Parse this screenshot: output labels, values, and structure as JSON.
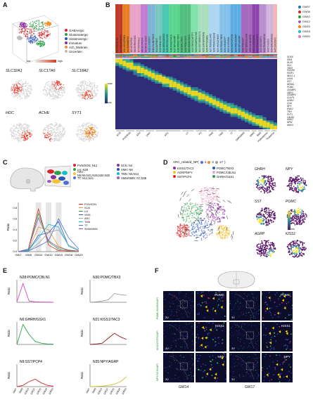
{
  "panels": {
    "A": "A",
    "B": "B",
    "C": "C",
    "D": "D",
    "E": "E",
    "F": "F"
  },
  "panelA": {
    "legend": [
      {
        "label": "GABAergic",
        "color": "#d7262b"
      },
      {
        "label": "Glutamatergic",
        "color": "#2ca048"
      },
      {
        "label": "Histaminergic",
        "color": "#2b55b8"
      },
      {
        "label": "Immature",
        "color": "#8c2f9c"
      },
      {
        "label": "Ach_Mixbrain",
        "color": "#f28c28"
      },
      {
        "label": "Uncertain",
        "color": "#bbbbbb"
      }
    ],
    "scale_low": "low",
    "scale_high": "high",
    "genes": [
      "SLC32A1",
      "SLC17A6",
      "SLC18A2",
      "HDC",
      "ACHE",
      "SYT1"
    ]
  },
  "panelB": {
    "stage_legend": [
      {
        "label": "GW07",
        "color": "#1f77b4"
      },
      {
        "label": "GW08",
        "color": "#d62728"
      },
      {
        "label": "GW10",
        "color": "#2ca02c"
      },
      {
        "label": "GW12",
        "color": "#9467bd"
      },
      {
        "label": "GW15",
        "color": "#ff7f0e"
      },
      {
        "label": "GW18",
        "color": "#17becf"
      },
      {
        "label": "GW20",
        "color": "#e377c2"
      }
    ],
    "genes_right": [
      "SOX6",
      "SIM1",
      "DLX5",
      "ISL1",
      "TBX3",
      "PCDH9",
      "FEZF1",
      "NKX2-1",
      "LHX6",
      "SST",
      "NR5A1",
      "POMC",
      "CRABP1",
      "LMO3",
      "CRABP2",
      "GULP1",
      "GHRH",
      "CGA",
      "NPY",
      "EMX2",
      "TRH",
      "PVT1",
      "CALB2",
      "HMX2",
      "NPW",
      "HMX3"
    ],
    "clusters": [
      {
        "label": "N1:ZIC1/ST18",
        "color": "#c0392b"
      },
      {
        "label": "N2:POU3F3/NTS",
        "color": "#c0392b"
      },
      {
        "label": "N3:LHX1/CPNE4",
        "color": "#e67e22"
      },
      {
        "label": "N4:SIX6/MEIS2",
        "color": "#e67e22"
      },
      {
        "label": "N5:SST/CPN9",
        "color": "#e9a3c9"
      },
      {
        "label": "N6:GHRH/GSX1",
        "color": "#e9a3c9"
      },
      {
        "label": "N7:PCP4/ISL1",
        "color": "#e9a3c9"
      },
      {
        "label": "N8:SST/PCP4",
        "color": "#c27fd0"
      },
      {
        "label": "N9:NKX2-1/SST",
        "color": "#c27fd0"
      },
      {
        "label": "N10:LHX6/OXT",
        "color": "#7fb3d5"
      },
      {
        "label": "N11:CALB1/TAC3",
        "color": "#7fb3d5"
      },
      {
        "label": "N12:AVP/OXT",
        "color": "#76c7c0"
      },
      {
        "label": "N13:SIM1/LHX9",
        "color": "#76c7c0"
      },
      {
        "label": "N14:NR5A1/ESR1",
        "color": "#48c9b0"
      },
      {
        "label": "N15:FEZF1/LHX9",
        "color": "#48c9b0"
      },
      {
        "label": "N16:KISS1/TAC3",
        "color": "#58d68d"
      },
      {
        "label": "N17:NPY/AGRP",
        "color": "#58d68d"
      },
      {
        "label": "N18:POMC/TBX3",
        "color": "#58d68d"
      },
      {
        "label": "N19:GAL/TAC1",
        "color": "#52be80"
      },
      {
        "label": "N20:PENK/SIX3",
        "color": "#52be80"
      },
      {
        "label": "N21:KISS1/TAC3",
        "color": "#52be80"
      },
      {
        "label": "N22:TBX3/CARTPT",
        "color": "#82e0aa"
      },
      {
        "label": "N23:CRABP1/LHX8",
        "color": "#82e0aa"
      },
      {
        "label": "N24:SST/ONECUT1",
        "color": "#a9dfbf"
      },
      {
        "label": "N25:LMX1A/FOXA1",
        "color": "#a9dfbf"
      },
      {
        "label": "N26:PITX2/SIM1",
        "color": "#a9dfbf"
      },
      {
        "label": "N27:FOXB1/LHX5",
        "color": "#aed6f1"
      },
      {
        "label": "N28:POMC/CBLN1",
        "color": "#aed6f1"
      },
      {
        "label": "N29:HMX2/HMX3",
        "color": "#aed6f1"
      },
      {
        "label": "N30:POMC/TBX3",
        "color": "#85c1e9"
      },
      {
        "label": "N31:SIM1/OTP",
        "color": "#85c1e9"
      },
      {
        "label": "N32:LHX9/GAL",
        "color": "#85c1e9"
      },
      {
        "label": "N33:HCRT/PDYN",
        "color": "#5dade2"
      },
      {
        "label": "N34:PMCH/CART",
        "color": "#5dade2"
      },
      {
        "label": "N35:NPY/AGRP",
        "color": "#5dade2"
      },
      {
        "label": "N36:TRH/SST",
        "color": "#a569bd"
      },
      {
        "label": "N37:NR5A2/LHX8",
        "color": "#a569bd"
      },
      {
        "label": "N38:CALB2/NPW",
        "color": "#a569bd"
      },
      {
        "label": "N39:LHX6/SOX6",
        "color": "#8e44ad"
      },
      {
        "label": "N40:PVALB/TAC1",
        "color": "#8e44ad"
      },
      {
        "label": "N41:HDC/WIF1",
        "color": "#bb8fce"
      },
      {
        "label": "N42:PAX6/SOX14",
        "color": "#bb8fce"
      },
      {
        "label": "N43:TH/ZIC2",
        "color": "#d2b4de"
      },
      {
        "label": "N44:GAD2/MEIS2",
        "color": "#d2b4de"
      },
      {
        "label": "N45:SIX3/SP9",
        "color": "#f5b7b1"
      }
    ],
    "regions": [
      {
        "label": "SCN",
        "span": 3
      },
      {
        "label": "PVN/SON",
        "span": 3
      },
      {
        "label": "ARH",
        "span": 3
      },
      {
        "label": "VMH",
        "span": 3
      },
      {
        "label": "ARC",
        "span": 8
      },
      {
        "label": "LH",
        "span": 4
      },
      {
        "label": "PH",
        "span": 4
      },
      {
        "label": "PMN",
        "span": 3
      },
      {
        "label": "TMN",
        "span": 3
      },
      {
        "label": "TT",
        "span": 3
      },
      {
        "label": "SMN/MMN",
        "span": 4
      },
      {
        "label": "MMN",
        "span": 2
      },
      {
        "label": "SMN",
        "span": 2
      },
      {
        "label": "Prethalamus",
        "span": 2
      },
      {
        "label": "Thalamus",
        "span": 2
      }
    ],
    "scale_max": "max",
    "scale_min": "min"
  },
  "panelC": {
    "legend": [
      {
        "label": "PVN/SON: N12",
        "color": "#d7262b"
      },
      {
        "label": "SCN: N4",
        "color": "#8c2f9c"
      },
      {
        "label": "LH: N29",
        "color": "#2ca048"
      },
      {
        "label": "VMH: N8",
        "color": "#2b55b8"
      },
      {
        "label": "ARC: N6,N9,N21,N28,N30,N35",
        "color": "#f2c230"
      },
      {
        "label": "TMN: N5,N13",
        "color": "#17becf"
      },
      {
        "label": "TT: N14,N41",
        "color": "#4a6fd8"
      },
      {
        "label": "SMN/MMN: N7,N38",
        "color": "#9b59b6"
      }
    ],
    "ylabel": "Ratio",
    "ytick_labels": [
      "0.0",
      "0.2",
      "0.4",
      "0.6",
      "0.8"
    ],
    "chart_data": {
      "type": "line",
      "categories": [
        "GW7",
        "GW8",
        "GW10",
        "GW12",
        "GW15",
        "GW18",
        "GW20"
      ],
      "ylabel": "Ratio",
      "ylim": [
        0,
        0.9
      ],
      "highlight_categories": [
        "GW10",
        "GW12",
        "GW15"
      ],
      "series": [
        {
          "name": "PVN/SON",
          "color": "#d7262b",
          "values": [
            0.0,
            0.05,
            0.78,
            0.12,
            0.02,
            0.01,
            0.0
          ]
        },
        {
          "name": "SCN",
          "color": "#e89a2a",
          "values": [
            0.0,
            0.02,
            0.45,
            0.4,
            0.1,
            0.02,
            0.0
          ]
        },
        {
          "name": "LH",
          "color": "#2ca048",
          "values": [
            0.0,
            0.03,
            0.7,
            0.18,
            0.05,
            0.02,
            0.01
          ]
        },
        {
          "name": "VMH",
          "color": "#2b55b8",
          "values": [
            0.0,
            0.02,
            0.3,
            0.35,
            0.55,
            0.1,
            0.02
          ]
        },
        {
          "name": "ARC",
          "color": "#9e9e9e",
          "values": [
            0.0,
            0.01,
            0.15,
            0.35,
            0.4,
            0.12,
            0.03
          ]
        },
        {
          "name": "TMN",
          "color": "#17becf",
          "values": [
            0.0,
            0.02,
            0.25,
            0.5,
            0.45,
            0.1,
            0.02
          ]
        },
        {
          "name": "TT",
          "color": "#4a6fd8",
          "values": [
            0.0,
            0.01,
            0.1,
            0.2,
            0.6,
            0.25,
            0.05
          ]
        },
        {
          "name": "SMN/MMN",
          "color": "#9b59b6",
          "values": [
            0.0,
            0.05,
            0.62,
            0.2,
            0.08,
            0.03,
            0.01
          ]
        }
      ]
    }
  },
  "panelD": {
    "title": "ARC_related_NP(",
    "title_items": [
      {
        "label": "1",
        "color": "#4a6fd8"
      },
      {
        "label": "2",
        "color": "#f28c28"
      },
      {
        "label": "17",
        "color": "#9e9e9e"
      }
    ],
    "title_end": ")",
    "legend": [
      {
        "label": "KISS1/TAC3",
        "color": "#8c2f9c"
      },
      {
        "label": "POMC/TBX3",
        "color": "#2b55b8"
      },
      {
        "label": "AGRP/NPY",
        "color": "#f2c230"
      },
      {
        "label": "POMC/CBLN1",
        "color": "#e9a3c9"
      },
      {
        "label": "SST/PCP4",
        "color": "#d7262b"
      },
      {
        "label": "GHRH/GSX1",
        "color": "#2ca048"
      }
    ],
    "genes": [
      "GHRH",
      "NPY",
      "SST",
      "POMC",
      "AGRP",
      "KISS1"
    ],
    "scale_max": "max",
    "scale_min": "min"
  },
  "panelE": {
    "charts": [
      {
        "title": "N28:POMC/CBLN1",
        "color": "#e040c8",
        "values": [
          0.02,
          0.75,
          0.05,
          0.02,
          0.01,
          0.01,
          0.0
        ]
      },
      {
        "title": "N30:POMC/TBX3",
        "color": "#9e9e9e",
        "values": [
          0.0,
          0.02,
          0.05,
          0.1,
          0.35,
          0.3,
          0.28
        ]
      },
      {
        "title": "N6:GHRH/GSX1",
        "color": "#2ca048",
        "values": [
          0.0,
          0.8,
          0.4,
          0.12,
          0.05,
          0.02,
          0.01
        ]
      },
      {
        "title": "N21:KISS1/TAC3",
        "color": "#8b1a1a",
        "values": [
          0.0,
          0.02,
          0.05,
          0.25,
          0.45,
          0.3,
          0.2
        ]
      },
      {
        "title": "N9:SST/PCP4",
        "color": "#d7262b",
        "values": [
          0.0,
          0.05,
          0.2,
          0.3,
          0.15,
          0.05,
          0.02
        ]
      },
      {
        "title": "N35:NPY/AGRP",
        "color": "#c8c820",
        "values": [
          0.0,
          0.01,
          0.02,
          0.05,
          0.1,
          0.2,
          0.4
        ]
      }
    ],
    "categories": [
      "GW7",
      "GW8",
      "GW10",
      "GW12",
      "GW15",
      "GW18",
      "GW20"
    ],
    "ylabel": "Ratio"
  },
  "panelF": {
    "rows": [
      {
        "stain": "POMC/SOX6/DAPI",
        "label": "POMC"
      },
      {
        "stain": "KISS1/SST/DAPI",
        "label": "KISS1"
      },
      {
        "stain": "NPY/SST/DAPI",
        "label": "NPY"
      }
    ],
    "col_labels": [
      "GW14",
      "GW17"
    ],
    "region_marks": [
      "3V",
      "3V",
      "3V"
    ]
  }
}
